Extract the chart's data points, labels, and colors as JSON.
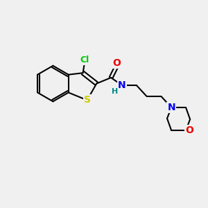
{
  "background_color": "#f0f0f0",
  "bond_color": "#000000",
  "line_width": 1.5,
  "atom_colors": {
    "Cl": "#00cc00",
    "S": "#cccc00",
    "N": "#0000ee",
    "O": "#ee0000",
    "H": "#008888"
  },
  "font_size": 9,
  "figsize": [
    3.0,
    3.0
  ],
  "dpi": 100
}
